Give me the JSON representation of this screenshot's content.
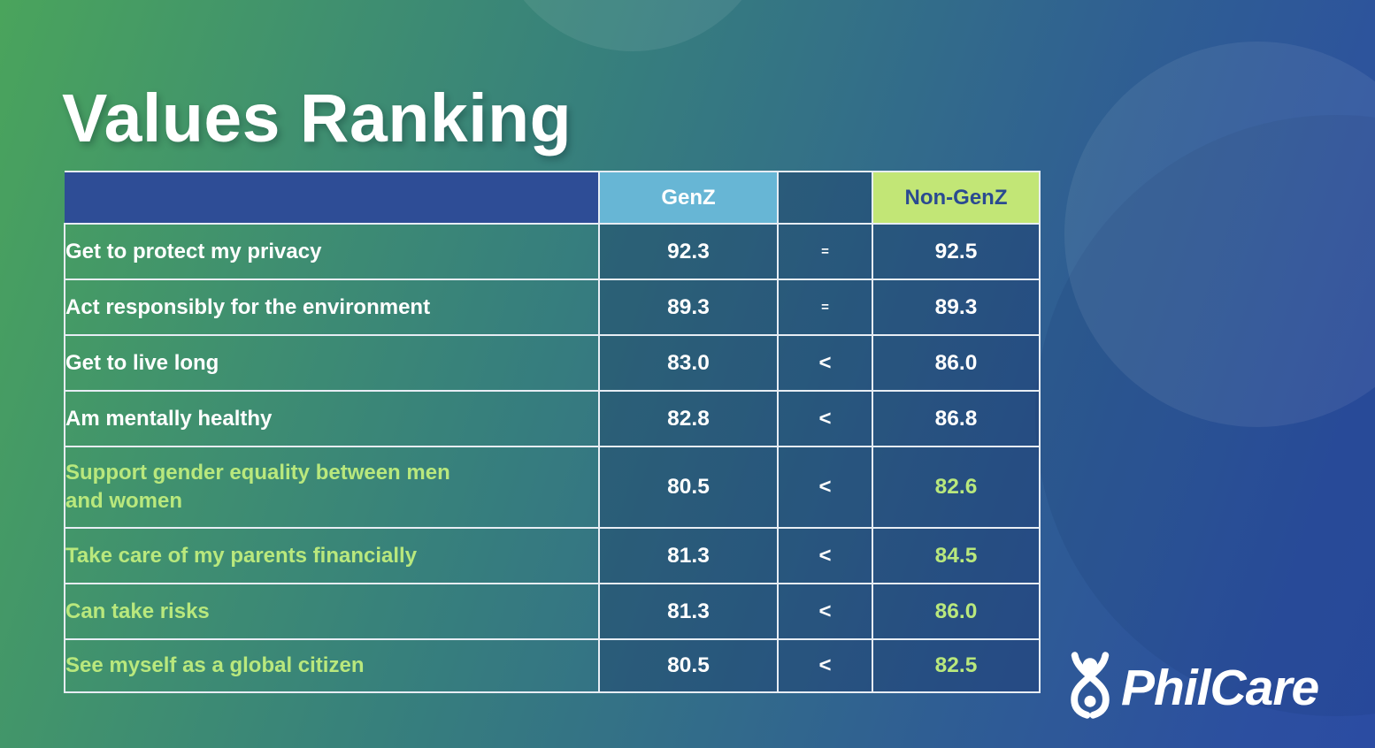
{
  "title": "Values Ranking",
  "logo": {
    "name": "PhilCare"
  },
  "table": {
    "header": {
      "group_label": "",
      "genz_label": "GenZ",
      "comparison_label": "",
      "non_genz_label": "Non-GenZ"
    },
    "rows": [
      {
        "label_lines": [
          "Get to protect my privacy"
        ],
        "genz": "92.3",
        "comparison": "=",
        "non_genz": "92.5",
        "highlighted": false
      },
      {
        "label_lines": [
          "Act responsibly for the environment"
        ],
        "genz": "89.3",
        "comparison": "=",
        "non_genz": "89.3",
        "highlighted": false
      },
      {
        "label_lines": [
          "Get to live long"
        ],
        "genz": "83.0",
        "comparison": "<",
        "non_genz": "86.0",
        "highlighted": false
      },
      {
        "label_lines": [
          "Am mentally healthy"
        ],
        "genz": "82.8",
        "comparison": "<",
        "non_genz": "86.8",
        "highlighted": false
      },
      {
        "label_lines": [
          "Support gender equality between men",
          "and women"
        ],
        "genz": "80.5",
        "comparison": "<",
        "non_genz": "82.6",
        "highlighted": true
      },
      {
        "label_lines": [
          "Take care of my parents financially"
        ],
        "genz": "81.3",
        "comparison": "<",
        "non_genz": "84.5",
        "highlighted": true
      },
      {
        "label_lines": [
          "Can take risks"
        ],
        "genz": "81.3",
        "comparison": "<",
        "non_genz": "86.0",
        "highlighted": true
      },
      {
        "label_lines": [
          "See myself as a global citizen"
        ],
        "genz": "80.5",
        "comparison": "<",
        "non_genz": "82.5",
        "highlighted": true
      }
    ]
  },
  "chart_data": {
    "type": "table",
    "title": "Values Ranking",
    "categories": [
      "Get to protect my privacy",
      "Act responsibly for the environment",
      "Get to live long",
      "Am mentally healthy",
      "Support gender equality between men and women",
      "Take care of my parents financially",
      "Can take risks",
      "See myself as a global citizen"
    ],
    "series": [
      {
        "name": "GenZ",
        "values": [
          92.3,
          89.3,
          83.0,
          82.8,
          80.5,
          81.3,
          81.3,
          80.5
        ]
      },
      {
        "name": "Non-GenZ",
        "values": [
          92.5,
          89.3,
          86.0,
          86.8,
          82.6,
          84.5,
          86.0,
          82.5
        ]
      }
    ],
    "comparisons": [
      "=",
      "=",
      "<",
      "<",
      "<",
      "<",
      "<",
      "<"
    ]
  },
  "colors": {
    "header_first_cell": "#2e4d96",
    "genz_header_bg": "#67b6d5",
    "non_genz_header_bg": "#c2e676",
    "non_genz_header_text": "#2a4a91",
    "highlight_text": "#b9e87d",
    "bg_green": "#4aa45c",
    "bg_blue": "#2b4ca2"
  }
}
